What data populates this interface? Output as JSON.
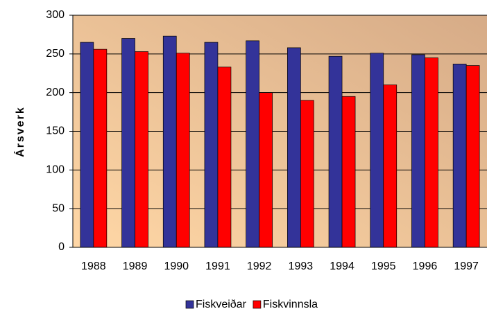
{
  "chart_data": {
    "type": "bar",
    "y_label": "Ársverk",
    "categories": [
      "1988",
      "1989",
      "1990",
      "1991",
      "1992",
      "1993",
      "1994",
      "1995",
      "1996",
      "1997"
    ],
    "series": [
      {
        "name": "Fiskveiðar",
        "color": "#333399",
        "values": [
          265,
          270,
          273,
          265,
          267,
          258,
          247,
          251,
          249,
          237
        ]
      },
      {
        "name": "Fiskvinnsla",
        "color": "#ff0000",
        "values": [
          256,
          253,
          251,
          233,
          200,
          190,
          195,
          210,
          245,
          235
        ]
      }
    ],
    "ylim": [
      0,
      300
    ],
    "yticks": [
      0,
      50,
      100,
      150,
      200,
      250,
      300
    ],
    "grid": true,
    "legend": "bottom"
  }
}
